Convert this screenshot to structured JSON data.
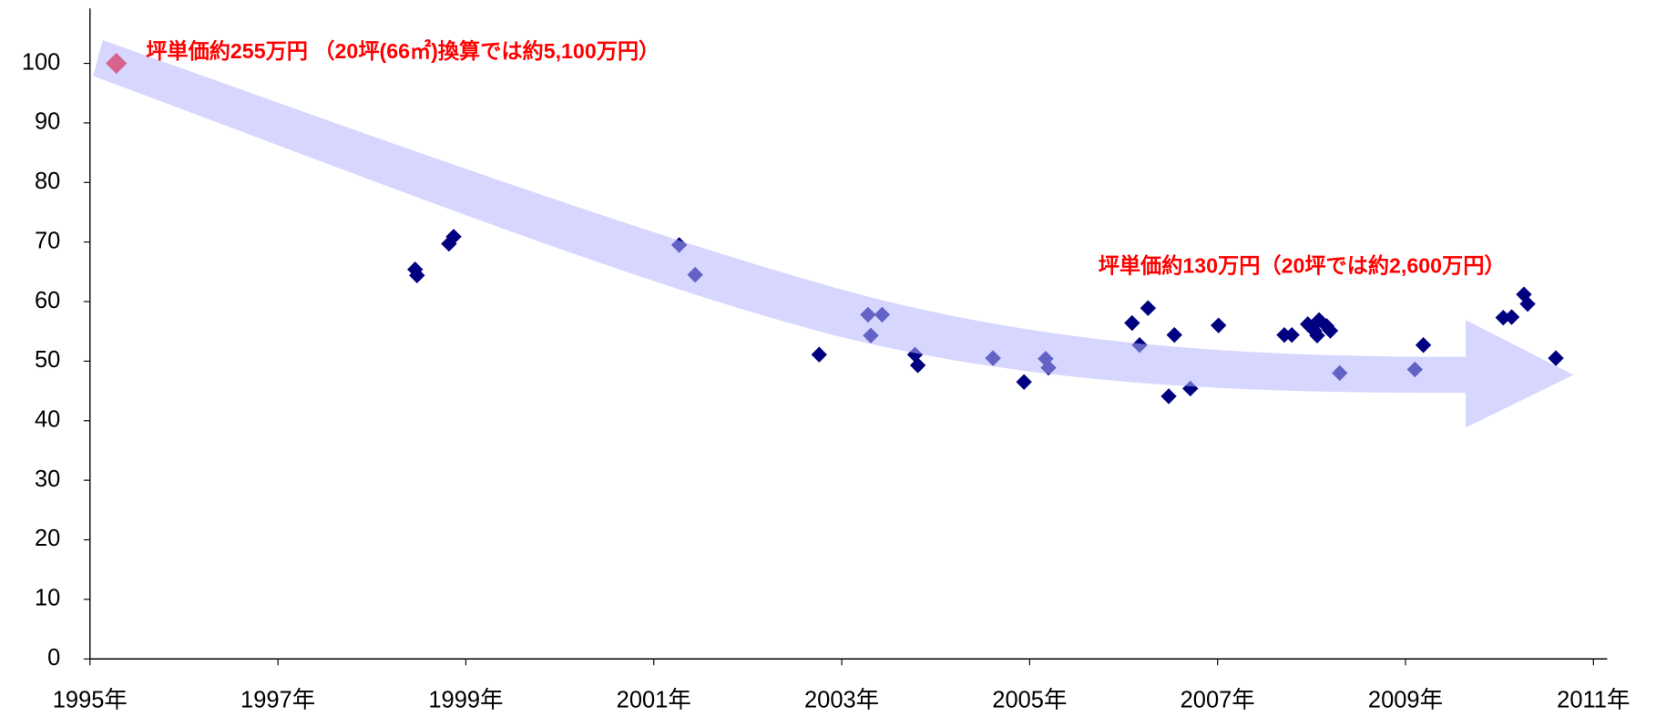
{
  "chart_data": {
    "type": "scatter",
    "annotations": [
      "坪単価約255万円 （20坪(66㎡)換算では約5,100万円）",
      "坪単価約130万円（20坪では約2,600万円）"
    ],
    "series": [
      {
        "color": "#ff0000",
        "x": [
          1995.28
        ],
        "values": [
          100
        ]
      },
      {
        "color": "#000080",
        "x": [
          1998.46,
          1998.48,
          1998.82,
          1998.87,
          2001.27,
          2001.44,
          2002.76,
          2003.28,
          2003.43,
          2003.31,
          2003.78,
          2003.81,
          2004.61,
          2004.94,
          2005.17,
          2005.2,
          2006.09,
          2006.26,
          2006.17,
          2006.48,
          2006.54,
          2006.71,
          2007.01,
          2007.71,
          2007.79,
          2007.96,
          2008.03,
          2008.08,
          2008.06,
          2008.16,
          2008.2,
          2008.3,
          2009.1,
          2009.19,
          2010.04,
          2010.13,
          2010.26,
          2010.3,
          2010.6
        ],
        "values": [
          65.4,
          64.4,
          69.7,
          70.9,
          69.5,
          64.5,
          51.1,
          57.8,
          57.8,
          54.3,
          51.1,
          49.3,
          50.5,
          46.5,
          50.4,
          48.9,
          56.4,
          58.9,
          52.7,
          44.1,
          54.4,
          45.4,
          56.0,
          54.4,
          54.4,
          56.2,
          55.1,
          56.9,
          54.3,
          55.9,
          55.1,
          48.0,
          48.6,
          52.7,
          57.3,
          57.4,
          61.2,
          59.6,
          50.5
        ]
      }
    ],
    "xlim": [
      1995,
      2011.1
    ],
    "xticks": [
      {
        "value": 1995,
        "label": "1995年"
      },
      {
        "value": 1997,
        "label": "1997年"
      },
      {
        "value": 1999,
        "label": "1999年"
      },
      {
        "value": 2001,
        "label": "2001年"
      },
      {
        "value": 2003,
        "label": "2003年"
      },
      {
        "value": 2005,
        "label": "2005年"
      },
      {
        "value": 2007,
        "label": "2007年"
      },
      {
        "value": 2009,
        "label": "2009年"
      },
      {
        "value": 2011,
        "label": "2011年"
      }
    ],
    "ylim": [
      0,
      100
    ],
    "yticks": [
      0,
      10,
      20,
      30,
      40,
      50,
      60,
      70,
      80,
      90,
      100
    ],
    "grid": false
  }
}
